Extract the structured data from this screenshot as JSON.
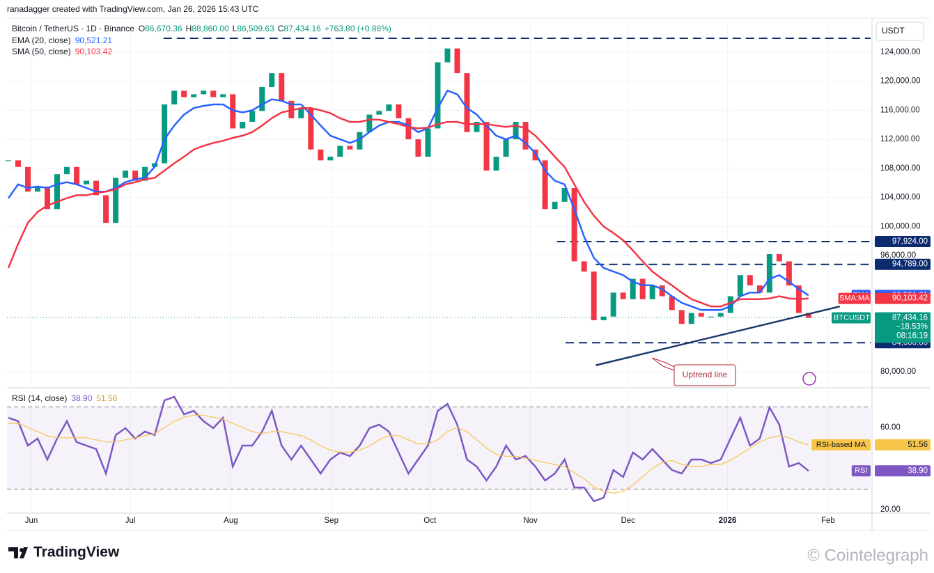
{
  "header": {
    "attribution": "ranadagger created with TradingView.com, Jan 26, 2026 15:43 UTC"
  },
  "chart_data": [
    {
      "type": "line",
      "title": "Bitcoin / TetherUS · 1D · Binance",
      "ohlc": [
        {
          "key": "O",
          "value": "86,670.36"
        },
        {
          "key": "H",
          "value": "88,860.00"
        },
        {
          "key": "L",
          "value": "86,509.63"
        },
        {
          "key": "C",
          "value": "87,434.16"
        }
      ],
      "change": "+763.80 (+0.88%)",
      "currency": "USDT",
      "categories": [
        null,
        null,
        null,
        null,
        null,
        null,
        null,
        null,
        null,
        null,
        null,
        null,
        null,
        null,
        null,
        null,
        null,
        null,
        null,
        null,
        null,
        null,
        null,
        null,
        null,
        null,
        null,
        null,
        null,
        null,
        null,
        null,
        null,
        null,
        null,
        null,
        null,
        null,
        null,
        null,
        null,
        null,
        null,
        null,
        null,
        null,
        null,
        null,
        null,
        null,
        null,
        null,
        null,
        null,
        null,
        null,
        null,
        null,
        null,
        null,
        null,
        null,
        null,
        null,
        null,
        null,
        null,
        null,
        null,
        null,
        null,
        null,
        null,
        null,
        null,
        null,
        null,
        null,
        null,
        null,
        null,
        null,
        null
      ],
      "xlim": [
        -0.14,
        88.36
      ],
      "xticks": [
        {
          "value": 2.36,
          "label": "Jun"
        },
        {
          "value": 12.5,
          "label": "Jul"
        },
        {
          "value": 22.8,
          "label": "Aug"
        },
        {
          "value": 33.1,
          "label": "Sep"
        },
        {
          "value": 43.2,
          "label": "Oct"
        },
        {
          "value": 53.5,
          "label": "Nov"
        },
        {
          "value": 63.5,
          "label": "Dec"
        },
        {
          "value": 73.7,
          "label": "2026"
        },
        {
          "value": 84.0,
          "label": "Feb"
        }
      ],
      "ylim": [
        77990,
        128300
      ],
      "yticks": [
        {
          "value": 80000,
          "label": "80,000.00"
        },
        {
          "value": 96000,
          "label": "96,000.00"
        },
        {
          "value": 100000,
          "label": "100,000.00"
        },
        {
          "value": 104000,
          "label": "104,000.00"
        },
        {
          "value": 108000,
          "label": "108,000.00"
        },
        {
          "value": 112000,
          "label": "112,000.00"
        },
        {
          "value": 116000,
          "label": "116,000.00"
        },
        {
          "value": 120000,
          "label": "120,000.00"
        },
        {
          "value": 124000,
          "label": "124,000.00"
        }
      ],
      "grid": true,
      "series": [
        {
          "name": "BTCUSDT",
          "style": "candles",
          "color": "#089981",
          "down_color": "#f23645",
          "badge": [
            "87,434.16",
            "−18.53%",
            "08:16:19"
          ],
          "values": [
            109100,
            108200,
            104800,
            105500,
            102400,
            107200,
            108200,
            105800,
            106300,
            104300,
            100500,
            106700,
            107700,
            106300,
            108200,
            108700,
            116800,
            118700,
            117800,
            118200,
            118700,
            117800,
            118200,
            113500,
            114400,
            115900,
            119200,
            121100,
            117300,
            114900,
            116300,
            110600,
            109100,
            109600,
            111100,
            110600,
            113000,
            115400,
            115900,
            116800,
            114900,
            112000,
            109600,
            113500,
            122600,
            124500,
            121100,
            113000,
            114400,
            107700,
            109600,
            112000,
            114400,
            110600,
            109100,
            102400,
            103400,
            105300,
            95200,
            93800,
            87100,
            87600,
            90900,
            90000,
            92800,
            90000,
            91900,
            90400,
            88500,
            86600,
            88100,
            87600,
            87600,
            88100,
            90400,
            93300,
            91900,
            90900,
            96200,
            95200,
            91900,
            88100,
            87434.16
          ]
        },
        {
          "name": "EMA",
          "legend": "EMA (20, close)",
          "last_label": "90,521.21",
          "color": "#2962ff",
          "values": [
            103900,
            105800,
            105300,
            105500,
            105300,
            105800,
            106100,
            105800,
            105300,
            104800,
            104800,
            105300,
            106100,
            106500,
            106700,
            108200,
            112000,
            113900,
            115400,
            116300,
            116600,
            116800,
            116800,
            116000,
            115700,
            116000,
            116800,
            117500,
            117300,
            116800,
            116800,
            115400,
            113900,
            112500,
            112000,
            111500,
            112000,
            113000,
            113900,
            114400,
            114400,
            113900,
            113000,
            113500,
            116300,
            118700,
            118200,
            116300,
            115400,
            113900,
            112500,
            112000,
            112500,
            111500,
            110100,
            107700,
            106300,
            105800,
            102400,
            98600,
            95700,
            94300,
            93800,
            93300,
            92400,
            91900,
            91900,
            91400,
            90400,
            89500,
            89000,
            88500,
            88500,
            88500,
            89000,
            90400,
            90900,
            90900,
            92800,
            93300,
            92400,
            91400,
            90521.21
          ]
        },
        {
          "name": "SMA:MA",
          "legend": "SMA (50, close)",
          "last_label": "90,103.42",
          "color": "#f23645",
          "values": [
            94300,
            97600,
            100500,
            102000,
            102900,
            103400,
            103900,
            104300,
            104300,
            104600,
            104800,
            105100,
            105800,
            106100,
            106500,
            106700,
            107700,
            108700,
            109600,
            110600,
            111100,
            111500,
            111800,
            112200,
            112500,
            113000,
            113900,
            114900,
            115700,
            116000,
            116300,
            116300,
            116000,
            115600,
            114900,
            114400,
            114400,
            114700,
            114700,
            114400,
            114100,
            113700,
            113500,
            113600,
            114100,
            114400,
            114400,
            114100,
            114100,
            114100,
            113900,
            113700,
            113900,
            113500,
            112500,
            111100,
            109600,
            108200,
            105800,
            103400,
            101500,
            100000,
            99100,
            98100,
            96700,
            95200,
            93800,
            92800,
            91900,
            90900,
            90000,
            89500,
            89000,
            89000,
            89500,
            90000,
            90000,
            90000,
            90100,
            90400,
            90100,
            90000,
            90103.42
          ]
        }
      ],
      "levels": [
        {
          "value": 125900,
          "from": 15.9
        },
        {
          "value": 97924,
          "label": "97,924.00",
          "from": 56.2
        },
        {
          "value": 94789,
          "label": "94,789.00",
          "from": 60.2
        },
        {
          "value": 84000,
          "label": "84,000.00",
          "from": 57.1
        }
      ],
      "trendline": {
        "label": "Uptrend line",
        "x": [
          60.2,
          85.2
        ],
        "values": [
          80900,
          89000
        ]
      }
    },
    {
      "type": "line",
      "title": "RSI (14, close)",
      "ylim": [
        19,
        78.3
      ],
      "yticks": [
        {
          "value": 20,
          "label": "20.00"
        },
        {
          "value": 60,
          "label": "60.00"
        }
      ],
      "bands": [
        70,
        30
      ],
      "series": [
        {
          "name": "RSI",
          "last_label": "38.90",
          "color": "#7e57c2",
          "values": [
            64.7,
            63.1,
            51.2,
            54.6,
            44.4,
            54.6,
            63.1,
            52.9,
            51.2,
            49.5,
            37.6,
            56.3,
            59.7,
            54.6,
            58.0,
            56.3,
            73.2,
            74.9,
            66.4,
            68.1,
            63.1,
            59.7,
            64.7,
            41.0,
            51.2,
            51.2,
            58.0,
            68.1,
            51.2,
            44.4,
            51.2,
            44.4,
            37.6,
            44.4,
            47.8,
            46.1,
            51.2,
            59.7,
            61.4,
            58.0,
            47.8,
            37.6,
            44.4,
            51.2,
            68.1,
            71.5,
            61.4,
            44.4,
            41.0,
            34.2,
            41.0,
            51.2,
            44.4,
            46.1,
            41.0,
            34.2,
            37.6,
            44.4,
            30.8,
            30.8,
            24.1,
            25.8,
            39.3,
            35.9,
            47.8,
            44.4,
            49.5,
            44.4,
            39.3,
            37.6,
            44.4,
            44.4,
            42.7,
            44.4,
            54.6,
            64.7,
            51.2,
            54.6,
            69.8,
            61.4,
            41.0,
            42.7,
            38.9
          ]
        },
        {
          "name": "RSI-based MA",
          "last_label": "51.56",
          "color": "#f7c548",
          "values": [
            62,
            62,
            60,
            58,
            56,
            55,
            55,
            55,
            55,
            54,
            53,
            53,
            54,
            55,
            56,
            57,
            60,
            63,
            65,
            66,
            66,
            65,
            64,
            62,
            60,
            58,
            57,
            58,
            58,
            57,
            56,
            54,
            51,
            49,
            48,
            48,
            49,
            51,
            54,
            56,
            56,
            54,
            52,
            52,
            54,
            58,
            60,
            58,
            54,
            50,
            47,
            46,
            46,
            45,
            44,
            43,
            42,
            41,
            38,
            35,
            31,
            29,
            28,
            29,
            32,
            36,
            40,
            43,
            44,
            42,
            41,
            41,
            42,
            42,
            44,
            47,
            50,
            53,
            55,
            56,
            55,
            53,
            51.56
          ]
        }
      ]
    }
  ],
  "footer": {
    "brand": "TradingView",
    "watermark": "© Cointelegraph"
  }
}
